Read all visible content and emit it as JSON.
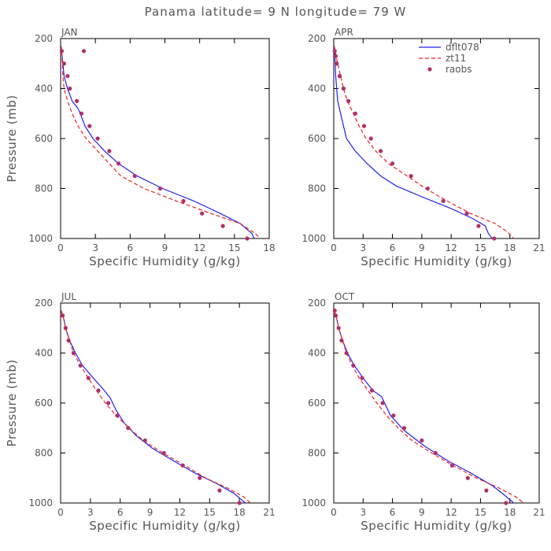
{
  "title": "Panama  latitude= 9 N longitude= 79 W",
  "colors": {
    "dflt078": "#2222ee",
    "zt11": "#ee2222",
    "raobs": "#b0306a",
    "text": "#555555"
  },
  "chart_data": [
    {
      "type": "line",
      "panel": "JAN",
      "xlabel": "Specific Humidity (g/kg)",
      "ylabel": "Pressure (mb)",
      "xlim": [
        0,
        18
      ],
      "xticks": [
        0,
        3,
        6,
        9,
        12,
        15,
        18
      ],
      "ylim": [
        200,
        1000
      ],
      "yticks": [
        200,
        400,
        600,
        800,
        1000
      ],
      "y_inverted": true,
      "series": [
        {
          "name": "dflt078",
          "style": "solid",
          "points": [
            [
              0.05,
              230
            ],
            [
              0.1,
              260
            ],
            [
              0.2,
              300
            ],
            [
              0.3,
              350
            ],
            [
              0.6,
              400
            ],
            [
              1.0,
              450
            ],
            [
              1.5,
              480
            ],
            [
              1.7,
              500
            ],
            [
              2.1,
              550
            ],
            [
              2.8,
              600
            ],
            [
              3.8,
              650
            ],
            [
              5.0,
              700
            ],
            [
              6.6,
              750
            ],
            [
              8.8,
              800
            ],
            [
              11.5,
              850
            ],
            [
              13.8,
              900
            ],
            [
              15.5,
              940
            ],
            [
              16.5,
              980
            ],
            [
              16.7,
              1000
            ]
          ]
        },
        {
          "name": "zt11",
          "style": "dashed",
          "points": [
            [
              0.05,
              230
            ],
            [
              0.1,
              260
            ],
            [
              0.15,
              300
            ],
            [
              0.2,
              350
            ],
            [
              0.3,
              400
            ],
            [
              0.6,
              450
            ],
            [
              1.0,
              500
            ],
            [
              1.5,
              550
            ],
            [
              2.2,
              600
            ],
            [
              3.0,
              640
            ],
            [
              4.2,
              700
            ],
            [
              5.2,
              750
            ],
            [
              7.2,
              800
            ],
            [
              10.0,
              850
            ],
            [
              13.0,
              900
            ],
            [
              15.5,
              940
            ],
            [
              16.8,
              980
            ],
            [
              17.2,
              1000
            ]
          ]
        },
        {
          "name": "raobs",
          "style": "dots",
          "points": [
            [
              0.1,
              250
            ],
            [
              0.3,
              300
            ],
            [
              0.6,
              350
            ],
            [
              0.8,
              400
            ],
            [
              1.4,
              450
            ],
            [
              1.8,
              500
            ],
            [
              2.5,
              550
            ],
            [
              3.2,
              600
            ],
            [
              4.2,
              650
            ],
            [
              5.0,
              700
            ],
            [
              6.4,
              750
            ],
            [
              8.6,
              800
            ],
            [
              10.6,
              850
            ],
            [
              12.2,
              900
            ],
            [
              14.0,
              950
            ],
            [
              16.1,
              1000
            ],
            [
              2.0,
              250
            ]
          ]
        }
      ]
    },
    {
      "type": "line",
      "panel": "APR",
      "xlabel": "Specific Humidity (g/kg)",
      "ylabel": "",
      "xlim": [
        0,
        21
      ],
      "xticks": [
        0,
        3,
        6,
        9,
        12,
        15,
        18,
        21
      ],
      "ylim": [
        200,
        1000
      ],
      "yticks": [
        200,
        400,
        600,
        800,
        1000
      ],
      "y_inverted": true,
      "series": [
        {
          "name": "dflt078",
          "style": "solid",
          "points": [
            [
              0.05,
              230
            ],
            [
              0.1,
              260
            ],
            [
              0.15,
              300
            ],
            [
              0.2,
              350
            ],
            [
              0.3,
              400
            ],
            [
              0.4,
              450
            ],
            [
              0.7,
              500
            ],
            [
              1.0,
              550
            ],
            [
              1.3,
              600
            ],
            [
              2.2,
              650
            ],
            [
              3.4,
              700
            ],
            [
              4.8,
              750
            ],
            [
              6.4,
              790
            ],
            [
              8.8,
              830
            ],
            [
              12.0,
              880
            ],
            [
              14.2,
              920
            ],
            [
              15.5,
              950
            ],
            [
              15.8,
              980
            ],
            [
              16.2,
              1000
            ]
          ]
        },
        {
          "name": "zt11",
          "style": "dashed",
          "points": [
            [
              0.05,
              230
            ],
            [
              0.2,
              260
            ],
            [
              0.4,
              300
            ],
            [
              0.7,
              350
            ],
            [
              1.0,
              400
            ],
            [
              1.4,
              450
            ],
            [
              2.0,
              500
            ],
            [
              2.6,
              550
            ],
            [
              3.3,
              600
            ],
            [
              4.3,
              650
            ],
            [
              5.6,
              700
            ],
            [
              7.5,
              750
            ],
            [
              9.4,
              800
            ],
            [
              11.6,
              850
            ],
            [
              14.0,
              900
            ],
            [
              16.5,
              940
            ],
            [
              17.8,
              975
            ],
            [
              18.4,
              1000
            ]
          ]
        },
        {
          "name": "raobs",
          "style": "dots",
          "points": [
            [
              0.1,
              250
            ],
            [
              0.3,
              300
            ],
            [
              0.6,
              350
            ],
            [
              1.0,
              400
            ],
            [
              1.5,
              450
            ],
            [
              2.2,
              500
            ],
            [
              3.1,
              550
            ],
            [
              3.8,
              600
            ],
            [
              4.8,
              650
            ],
            [
              6.0,
              700
            ],
            [
              7.9,
              750
            ],
            [
              9.6,
              800
            ],
            [
              11.2,
              850
            ],
            [
              13.6,
              900
            ],
            [
              14.8,
              950
            ],
            [
              16.4,
              1000
            ],
            [
              0.2,
              270
            ]
          ]
        }
      ]
    },
    {
      "type": "line",
      "panel": "JUL",
      "xlabel": "Specific Humidity (g/kg)",
      "ylabel": "Pressure (mb)",
      "xlim": [
        0,
        21
      ],
      "xticks": [
        0,
        3,
        6,
        9,
        12,
        15,
        18,
        21
      ],
      "ylim": [
        200,
        1000
      ],
      "yticks": [
        200,
        400,
        600,
        800,
        1000
      ],
      "y_inverted": true,
      "series": [
        {
          "name": "dflt078",
          "style": "solid",
          "points": [
            [
              0.05,
              230
            ],
            [
              0.3,
              260
            ],
            [
              0.5,
              300
            ],
            [
              0.9,
              350
            ],
            [
              1.5,
              400
            ],
            [
              2.2,
              450
            ],
            [
              3.3,
              500
            ],
            [
              4.4,
              550
            ],
            [
              5.0,
              580
            ],
            [
              5.6,
              630
            ],
            [
              6.4,
              680
            ],
            [
              7.6,
              730
            ],
            [
              9.2,
              780
            ],
            [
              11.3,
              830
            ],
            [
              13.5,
              880
            ],
            [
              15.6,
              920
            ],
            [
              17.4,
              960
            ],
            [
              18.6,
              1000
            ]
          ]
        },
        {
          "name": "zt11",
          "style": "dashed",
          "points": [
            [
              0.05,
              230
            ],
            [
              0.3,
              260
            ],
            [
              0.5,
              300
            ],
            [
              0.9,
              350
            ],
            [
              1.3,
              400
            ],
            [
              2.0,
              450
            ],
            [
              2.8,
              500
            ],
            [
              3.6,
              550
            ],
            [
              4.5,
              600
            ],
            [
              5.6,
              650
            ],
            [
              6.9,
              700
            ],
            [
              8.3,
              750
            ],
            [
              10.3,
              800
            ],
            [
              12.5,
              850
            ],
            [
              14.6,
              900
            ],
            [
              16.8,
              940
            ],
            [
              18.4,
              975
            ],
            [
              19.1,
              1000
            ]
          ]
        },
        {
          "name": "raobs",
          "style": "dots",
          "points": [
            [
              0.2,
              250
            ],
            [
              0.5,
              300
            ],
            [
              0.8,
              350
            ],
            [
              1.3,
              400
            ],
            [
              2.0,
              450
            ],
            [
              2.8,
              500
            ],
            [
              3.8,
              550
            ],
            [
              4.8,
              600
            ],
            [
              5.7,
              650
            ],
            [
              6.8,
              700
            ],
            [
              8.5,
              750
            ],
            [
              10.4,
              800
            ],
            [
              12.3,
              850
            ],
            [
              14.0,
              900
            ],
            [
              16.0,
              950
            ],
            [
              18.0,
              1000
            ]
          ]
        }
      ]
    },
    {
      "type": "line",
      "panel": "OCT",
      "xlabel": "Specific Humidity (g/kg)",
      "ylabel": "",
      "xlim": [
        0,
        21
      ],
      "xticks": [
        0,
        3,
        6,
        9,
        12,
        15,
        18,
        21
      ],
      "ylim": [
        200,
        1000
      ],
      "yticks": [
        200,
        400,
        600,
        800,
        1000
      ],
      "y_inverted": true,
      "series": [
        {
          "name": "dflt078",
          "style": "solid",
          "points": [
            [
              0.05,
              230
            ],
            [
              0.3,
              260
            ],
            [
              0.5,
              300
            ],
            [
              0.9,
              350
            ],
            [
              1.4,
              400
            ],
            [
              2.1,
              450
            ],
            [
              3.0,
              500
            ],
            [
              4.0,
              550
            ],
            [
              4.9,
              575
            ],
            [
              5.2,
              600
            ],
            [
              5.8,
              650
            ],
            [
              7.2,
              710
            ],
            [
              9.2,
              770
            ],
            [
              11.6,
              830
            ],
            [
              14.0,
              880
            ],
            [
              16.2,
              930
            ],
            [
              17.5,
              970
            ],
            [
              18.4,
              1000
            ]
          ]
        },
        {
          "name": "zt11",
          "style": "dashed",
          "points": [
            [
              0.05,
              230
            ],
            [
              0.3,
              260
            ],
            [
              0.5,
              300
            ],
            [
              0.9,
              350
            ],
            [
              1.3,
              400
            ],
            [
              1.9,
              450
            ],
            [
              2.6,
              500
            ],
            [
              3.5,
              550
            ],
            [
              4.4,
              600
            ],
            [
              5.4,
              650
            ],
            [
              6.6,
              700
            ],
            [
              8.0,
              750
            ],
            [
              10.0,
              800
            ],
            [
              12.2,
              850
            ],
            [
              14.6,
              900
            ],
            [
              16.9,
              940
            ],
            [
              18.6,
              975
            ],
            [
              19.4,
              1000
            ]
          ]
        },
        {
          "name": "raobs",
          "style": "dots",
          "points": [
            [
              0.2,
              250
            ],
            [
              0.5,
              300
            ],
            [
              0.8,
              350
            ],
            [
              1.3,
              400
            ],
            [
              2.0,
              450
            ],
            [
              2.9,
              500
            ],
            [
              3.9,
              550
            ],
            [
              5.0,
              600
            ],
            [
              6.1,
              650
            ],
            [
              7.2,
              700
            ],
            [
              9.0,
              750
            ],
            [
              10.4,
              800
            ],
            [
              12.1,
              850
            ],
            [
              13.7,
              900
            ],
            [
              15.6,
              950
            ],
            [
              17.6,
              1000
            ],
            [
              0.1,
              230
            ]
          ]
        }
      ]
    }
  ]
}
